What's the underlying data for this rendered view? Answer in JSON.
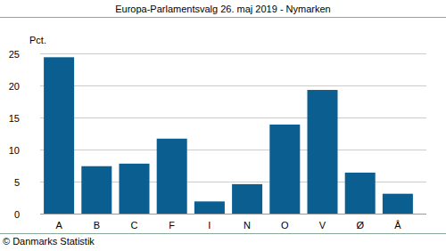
{
  "chart_data": {
    "type": "bar",
    "title": "Europa-Parlamentsvalg 26. maj 2019 - Nymarken",
    "y_label": "Pct.",
    "source": "© Danmarks Statistik",
    "categories": [
      "A",
      "B",
      "C",
      "F",
      "I",
      "N",
      "O",
      "V",
      "Ø",
      "Å"
    ],
    "values": [
      24.4,
      7.4,
      7.8,
      11.7,
      1.9,
      4.6,
      13.9,
      19.3,
      6.4,
      3.1
    ],
    "color": "#0a5e90",
    "ylim": [
      0,
      25
    ],
    "yticks": [
      0,
      5,
      10,
      15,
      20,
      25
    ],
    "grid": true
  }
}
